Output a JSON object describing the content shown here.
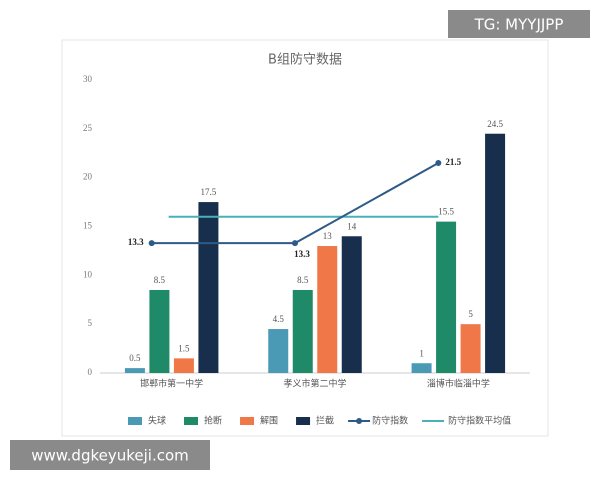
{
  "chart_data": {
    "type": "bar",
    "title": "B组防守数据",
    "categories": [
      "邯郸市第一中学",
      "孝义市第二中学",
      "淄博市临淄中学"
    ],
    "series": [
      {
        "name": "失球",
        "type": "bar",
        "color": "#4a9ab5",
        "values": [
          0.5,
          4.5,
          1
        ]
      },
      {
        "name": "抢断",
        "type": "bar",
        "color": "#1f8a68",
        "values": [
          8.5,
          8.5,
          15.5
        ]
      },
      {
        "name": "解围",
        "type": "bar",
        "color": "#f07848",
        "values": [
          1.5,
          13,
          5
        ]
      },
      {
        "name": "拦截",
        "type": "bar",
        "color": "#172f4c",
        "values": [
          17.5,
          14,
          24.5
        ]
      },
      {
        "name": "防守指数",
        "type": "line",
        "color": "#2e5b86",
        "values": [
          13.3,
          13.3,
          21.5
        ]
      }
    ],
    "reference_line": {
      "name": "防守指数平均值",
      "value": 16,
      "color": "#4ab0b8"
    },
    "ylim": [
      0,
      30
    ],
    "yticks": [
      0,
      5,
      10,
      15,
      20,
      25,
      30
    ],
    "grid": false,
    "legend": "bottom",
    "annotations": [
      "TG: MYYJJPP",
      "www.dgkeyukeji.com"
    ]
  }
}
